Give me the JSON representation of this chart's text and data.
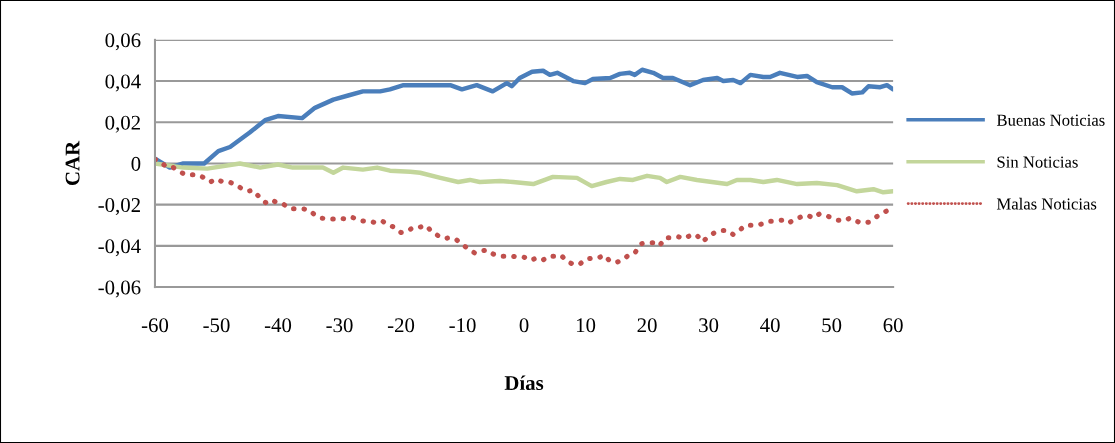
{
  "chart_data": {
    "type": "line",
    "xlabel": "Días",
    "ylabel": "CAR",
    "xlim": [
      -60,
      60
    ],
    "xticks": [
      -60,
      -50,
      -40,
      -30,
      -20,
      -10,
      0,
      10,
      20,
      30,
      40,
      50,
      60
    ],
    "ylim": [
      -0.06,
      0.06
    ],
    "yticks": [
      {
        "value": -0.06,
        "label": "-0,06"
      },
      {
        "value": -0.04,
        "label": "-0,04"
      },
      {
        "value": -0.02,
        "label": "-0,02"
      },
      0,
      {
        "value": 0.02,
        "label": "0,02"
      },
      {
        "value": 0.04,
        "label": "0,04"
      },
      {
        "value": 0.06,
        "label": "0,06"
      }
    ],
    "grid": "y",
    "legend": "right",
    "marker": "none",
    "series": [
      {
        "name": "Buenas Noticias",
        "color": "#4a7ebb",
        "line_style": "solid",
        "x": [
          -60,
          -57.6,
          -55.4,
          -52,
          -49.7,
          -47.8,
          -44.6,
          -42.1,
          -40,
          -36.1,
          -34,
          -31,
          -28.6,
          -26.2,
          -23.4,
          -21.8,
          -19.6,
          -12,
          -10.1,
          -7.7,
          -5.1,
          -2.8,
          -2,
          -0.7,
          1.3,
          3.1,
          4.2,
          5.4,
          8,
          9.9,
          11.2,
          14,
          15.6,
          17.2,
          18,
          19.2,
          21,
          22.6,
          24.2,
          27,
          29.1,
          31.4,
          32.4,
          34,
          35.2,
          36.8,
          38.9,
          40,
          41.6,
          44.4,
          46,
          47.6,
          50.1,
          51.7,
          53.3,
          55,
          56,
          57.9,
          59,
          60
        ],
        "values": [
          0.0024,
          -0.002,
          0,
          0,
          0.006,
          0.008,
          0.015,
          0.021,
          0.023,
          0.022,
          0.027,
          0.031,
          0.033,
          0.035,
          0.035,
          0.036,
          0.038,
          0.038,
          0.036,
          0.038,
          0.035,
          0.039,
          0.0375,
          0.0415,
          0.0445,
          0.045,
          0.043,
          0.044,
          0.04,
          0.039,
          0.041,
          0.0415,
          0.0435,
          0.044,
          0.043,
          0.0455,
          0.044,
          0.0415,
          0.0415,
          0.038,
          0.0405,
          0.0415,
          0.04,
          0.0405,
          0.039,
          0.043,
          0.042,
          0.042,
          0.044,
          0.042,
          0.0425,
          0.0395,
          0.037,
          0.037,
          0.034,
          0.0345,
          0.0375,
          0.037,
          0.038,
          0.036
        ]
      },
      {
        "name": "Sin Noticias",
        "color": "#c3d69b",
        "line_style": "solid",
        "x": [
          -60,
          -55.4,
          -51.5,
          -46.2,
          -42.9,
          -40,
          -37.6,
          -32.7,
          -31,
          -29.4,
          -26.2,
          -23.9,
          -21.8,
          -18.5,
          -16.9,
          -13.6,
          -10.7,
          -8.8,
          -7.2,
          -3.9,
          -1.8,
          1.5,
          4.7,
          8.6,
          11,
          13.4,
          15.6,
          17.7,
          20,
          22.1,
          23.2,
          25.4,
          28.1,
          33,
          34.6,
          36.8,
          38.9,
          41.1,
          44.4,
          47.6,
          50.9,
          54.1,
          56.8,
          58.4,
          60
        ],
        "values": [
          0,
          -0.002,
          -0.0025,
          0,
          -0.002,
          -0.0005,
          -0.002,
          -0.002,
          -0.0045,
          -0.002,
          -0.003,
          -0.002,
          -0.0035,
          -0.004,
          -0.0045,
          -0.007,
          -0.009,
          -0.008,
          -0.009,
          -0.0085,
          -0.009,
          -0.01,
          -0.0065,
          -0.007,
          -0.011,
          -0.009,
          -0.0075,
          -0.008,
          -0.006,
          -0.007,
          -0.009,
          -0.0065,
          -0.008,
          -0.01,
          -0.008,
          -0.008,
          -0.009,
          -0.008,
          -0.01,
          -0.0095,
          -0.0105,
          -0.0135,
          -0.0125,
          -0.014,
          -0.0135
        ]
      },
      {
        "name": "Malas Noticias",
        "color": "#c0504d",
        "line_style": "dotted",
        "x": [
          -60,
          -59,
          -58,
          -57,
          -56,
          -55,
          -54,
          -53,
          -52,
          -51,
          -50,
          -49,
          -48,
          -47,
          -46,
          -45,
          -44,
          -43,
          -42,
          -41,
          -40,
          -39,
          -38,
          -37,
          -36,
          -35,
          -34,
          -33,
          -32,
          -31,
          -30,
          -29,
          -28,
          -27,
          -26,
          -25,
          -24,
          -23,
          -22,
          -21,
          -20,
          -19,
          -18,
          -17,
          -16,
          -15,
          -14,
          -13,
          -12,
          -11,
          -10,
          -9,
          -8,
          -7,
          -6,
          -5,
          -4,
          -3,
          -2,
          -1,
          0,
          1,
          2,
          3,
          4,
          5,
          6,
          7,
          8,
          9,
          10,
          11,
          12,
          13,
          14,
          15,
          16,
          17,
          18,
          19,
          20,
          21,
          22,
          23,
          24,
          25,
          26,
          27,
          28,
          29,
          30,
          31,
          32,
          33,
          34,
          35,
          36,
          37,
          38,
          39,
          40,
          41,
          42,
          43,
          44,
          45,
          46,
          47,
          48,
          49,
          50,
          51,
          52,
          53,
          54,
          55,
          56,
          57,
          58,
          59
        ],
        "values": [
          0.002,
          0.0005,
          -0.002,
          -0.002,
          -0.004,
          -0.0055,
          -0.0055,
          -0.0055,
          -0.007,
          -0.009,
          -0.0075,
          -0.009,
          -0.009,
          -0.01,
          -0.012,
          -0.0135,
          -0.013,
          -0.0165,
          -0.019,
          -0.0175,
          -0.0195,
          -0.02,
          -0.022,
          -0.022,
          -0.022,
          -0.0225,
          -0.025,
          -0.0265,
          -0.027,
          -0.027,
          -0.0265,
          -0.027,
          -0.026,
          -0.0275,
          -0.028,
          -0.028,
          -0.029,
          -0.028,
          -0.03,
          -0.031,
          -0.0335,
          -0.033,
          -0.031,
          -0.031,
          -0.03,
          -0.033,
          -0.035,
          -0.0365,
          -0.036,
          -0.037,
          -0.0395,
          -0.0415,
          -0.0435,
          -0.0425,
          -0.042,
          -0.044,
          -0.045,
          -0.045,
          -0.045,
          -0.0455,
          -0.0455,
          -0.047,
          -0.046,
          -0.047,
          -0.045,
          -0.045,
          -0.0445,
          -0.0475,
          -0.049,
          -0.049,
          -0.0465,
          -0.046,
          -0.046,
          -0.0445,
          -0.0475,
          -0.048,
          -0.047,
          -0.0445,
          -0.0435,
          -0.039,
          -0.0385,
          -0.0385,
          -0.04,
          -0.036,
          -0.036,
          -0.0355,
          -0.0365,
          -0.035,
          -0.0345,
          -0.038,
          -0.0355,
          -0.0335,
          -0.0325,
          -0.0325,
          -0.0345,
          -0.0325,
          -0.03,
          -0.03,
          -0.03,
          -0.029,
          -0.028,
          -0.028,
          -0.0275,
          -0.029,
          -0.027,
          -0.026,
          -0.025,
          -0.0265,
          -0.0245,
          -0.025,
          -0.0265,
          -0.0275,
          -0.028,
          -0.0265,
          -0.028,
          -0.029,
          -0.0285,
          -0.0265,
          -0.0245,
          -0.023
        ]
      }
    ]
  }
}
